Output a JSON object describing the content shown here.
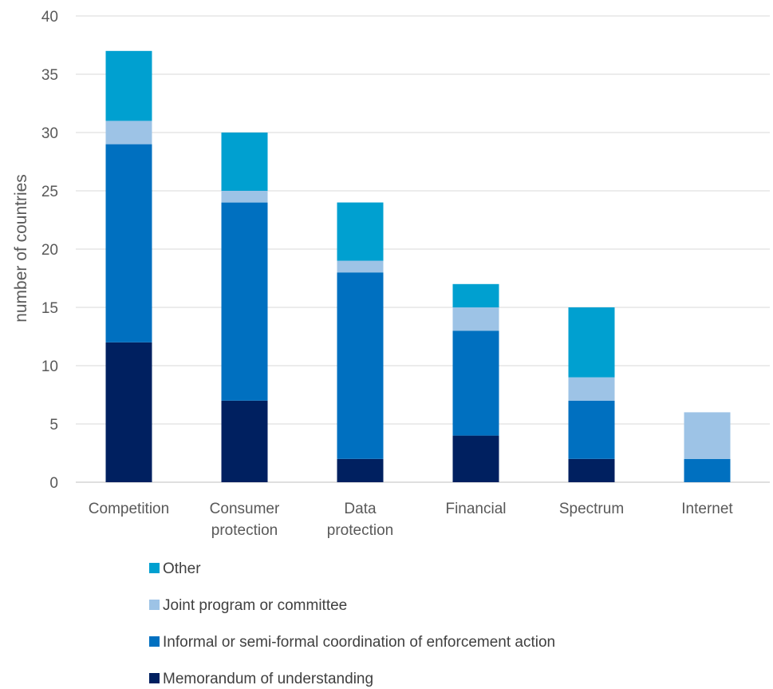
{
  "chart_data": {
    "type": "bar",
    "stacked": true,
    "title": "",
    "xlabel": "",
    "ylabel": "number of countries",
    "ylim": [
      0,
      40
    ],
    "yticks": [
      0,
      5,
      10,
      15,
      20,
      25,
      30,
      35,
      40
    ],
    "grid": true,
    "legend_position": "bottom",
    "categories": [
      [
        "Competition"
      ],
      [
        "Consumer",
        "protection"
      ],
      [
        "Data",
        "protection"
      ],
      [
        "Financial"
      ],
      [
        "Spectrum"
      ],
      [
        "Internet"
      ]
    ],
    "series": [
      {
        "name": "Memorandum of understanding",
        "color": "#002060",
        "values": [
          12,
          7,
          2,
          4,
          2,
          0
        ]
      },
      {
        "name": "Informal or semi-formal coordination of enforcement action",
        "color": "#0070C0",
        "values": [
          17,
          17,
          16,
          9,
          5,
          2
        ]
      },
      {
        "name": "Joint program or committee",
        "color": "#9DC3E6",
        "values": [
          2,
          1,
          1,
          2,
          2,
          4
        ]
      },
      {
        "name": "Other",
        "color": "#00A0D0",
        "values": [
          6,
          5,
          5,
          2,
          6,
          0
        ]
      }
    ],
    "legend_order": [
      3,
      2,
      1,
      0
    ]
  }
}
